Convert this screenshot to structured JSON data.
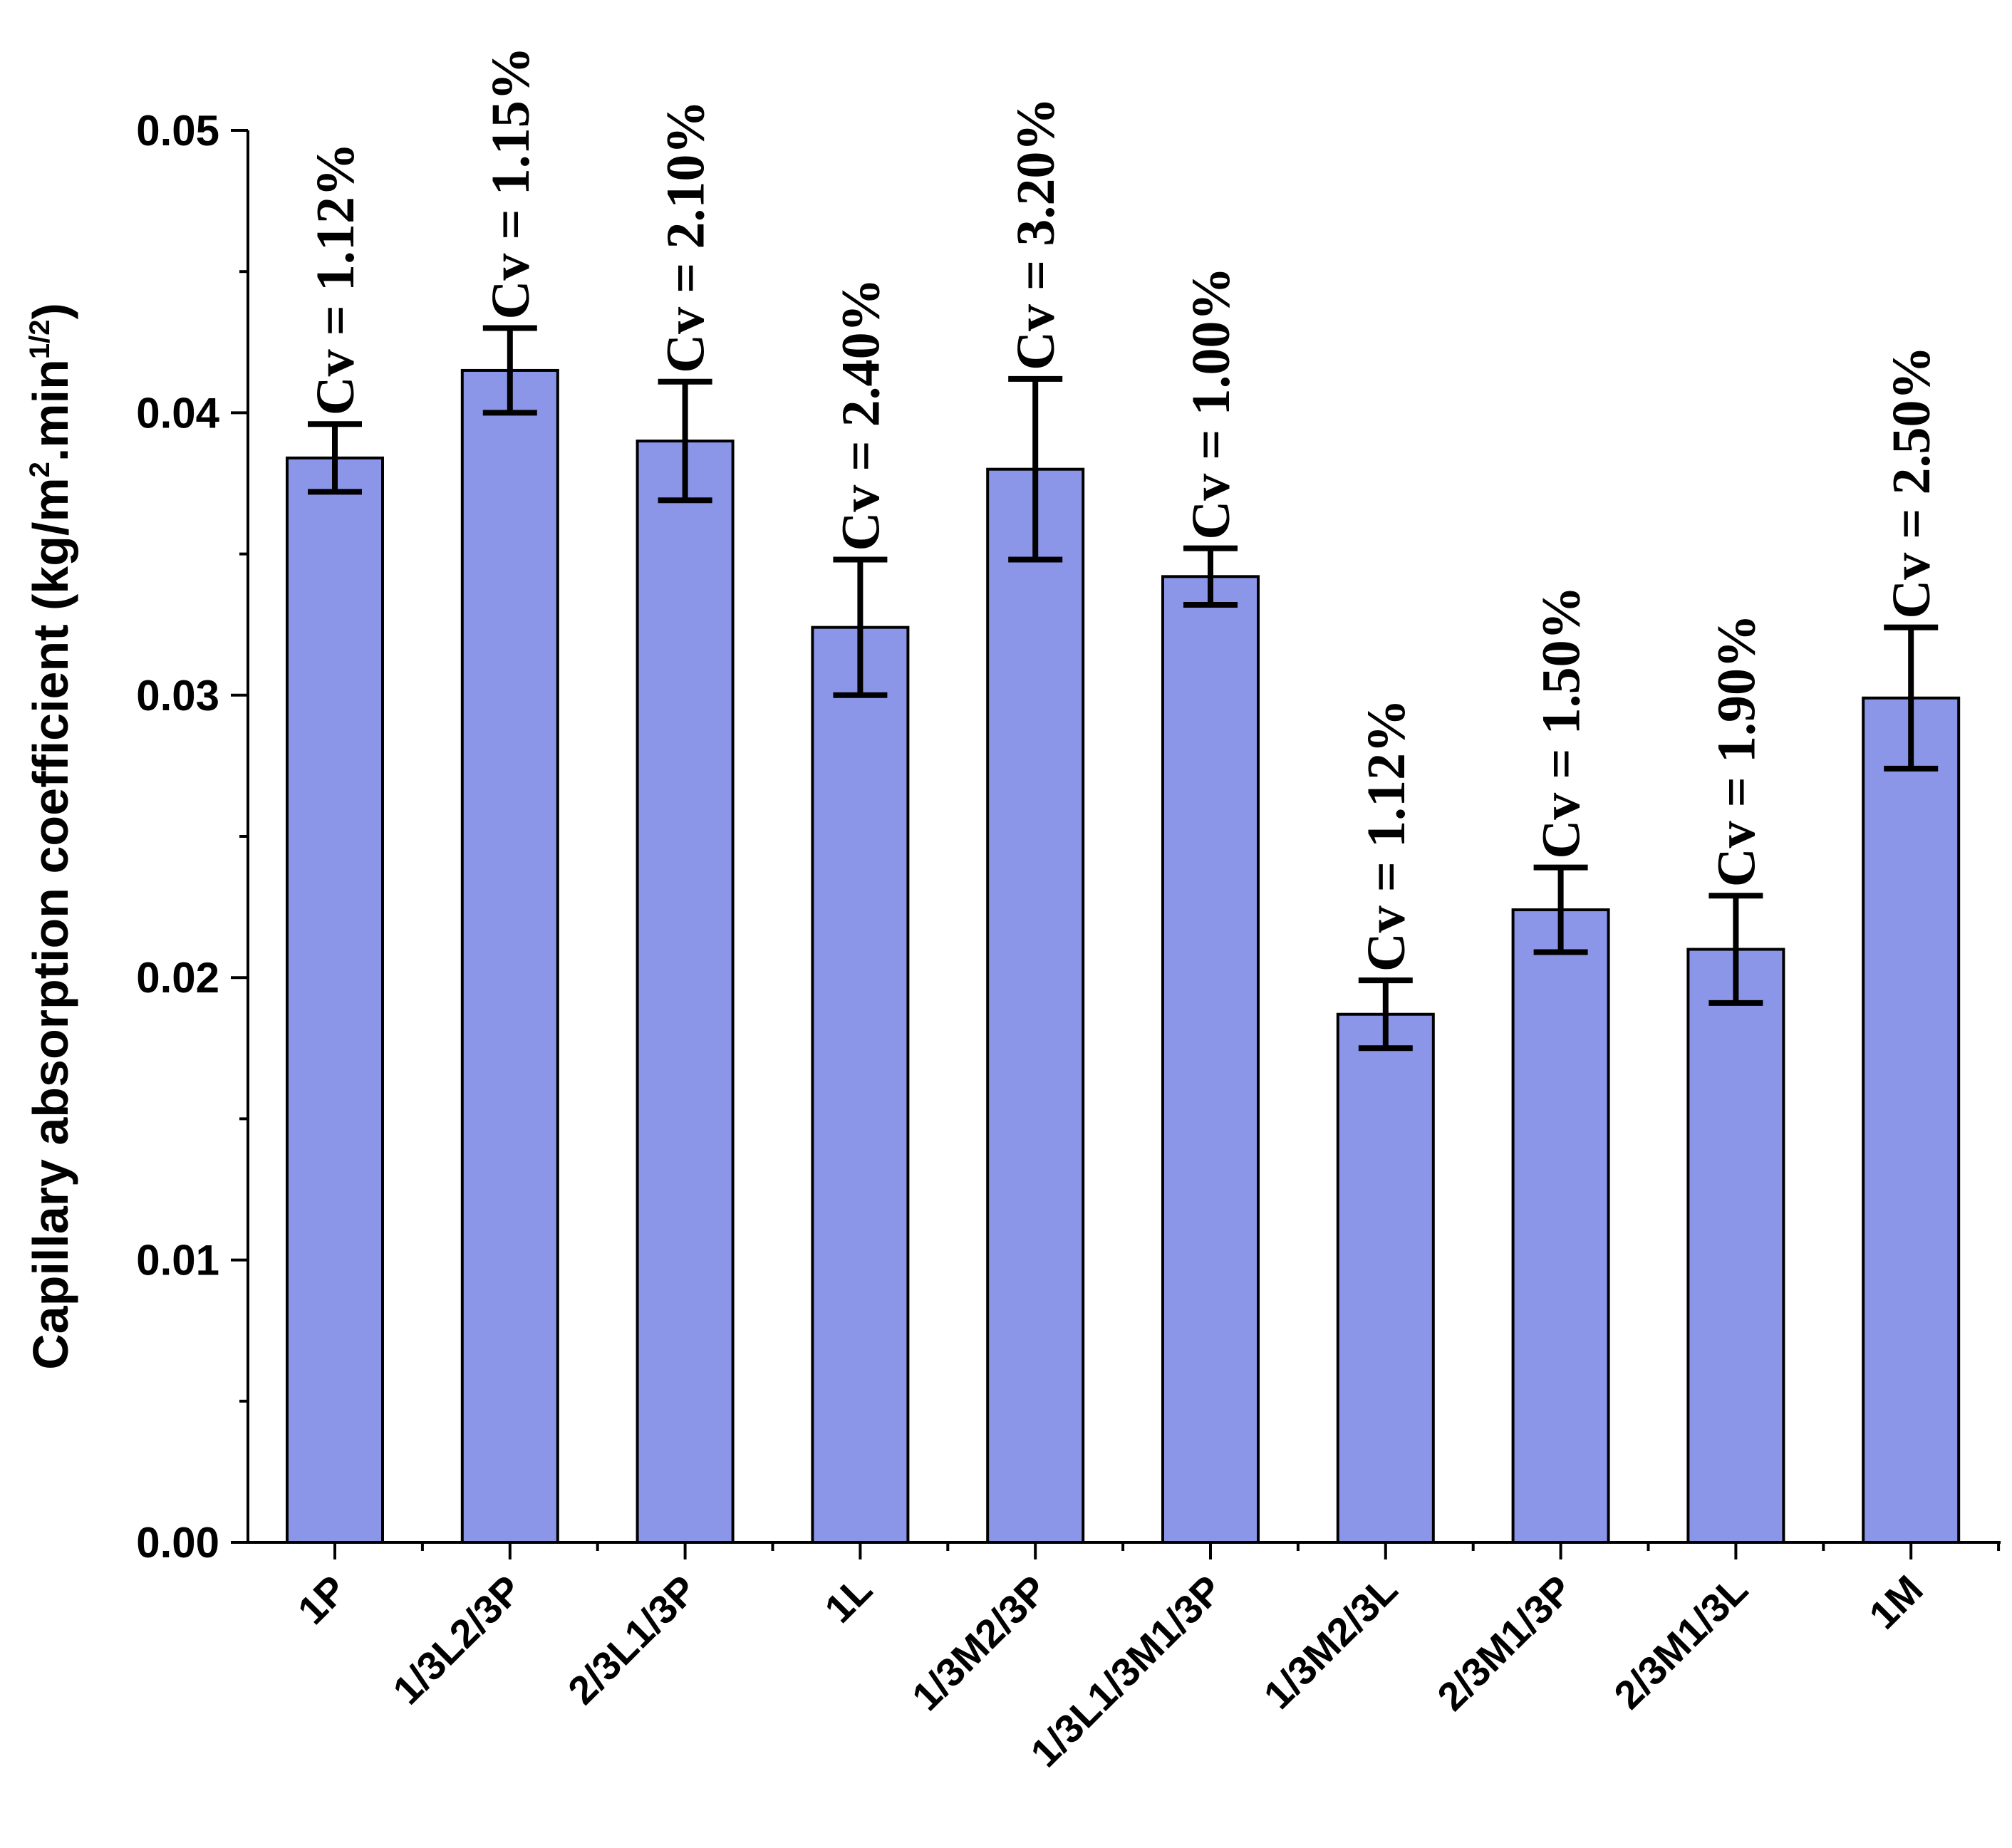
{
  "chart_data": {
    "type": "bar",
    "categories": [
      "1P",
      "1/3L2/3P",
      "2/3L1/3P",
      "1L",
      "1/3M2/3P",
      "1/3L1/3M1/3P",
      "1/3M2/3L",
      "2/3M1/3P",
      "2/3M1/3L",
      "1M"
    ],
    "values": [
      0.0384,
      0.0415,
      0.039,
      0.0324,
      0.038,
      0.0342,
      0.0187,
      0.0224,
      0.021,
      0.0299
    ],
    "errors": [
      0.0012,
      0.0015,
      0.0021,
      0.0024,
      0.0032,
      0.001,
      0.0012,
      0.0015,
      0.0019,
      0.0025
    ],
    "annotations": [
      "Cv = 1.12%",
      "Cv = 1.15%",
      "Cv = 2.10%",
      "Cv = 2.40%",
      "Cv = 3.20%",
      "Cv = 1.00%",
      "Cv = 1.12%",
      "Cv = 1.50%",
      "Cv = 1.90%",
      "Cv = 2.50%"
    ],
    "yticks": [
      "0.00",
      "0.01",
      "0.02",
      "0.03",
      "0.04",
      "0.05"
    ],
    "ylim": [
      0,
      0.05
    ],
    "ylabel": {
      "text1": "Capillary absorption coefficient (kg/m",
      "sup1": "2",
      "text2": ".min",
      "sup2": "1/2",
      "text3": ")"
    },
    "xlabel": "",
    "title": "",
    "grid": false,
    "bar_color": "#8c96e8"
  }
}
